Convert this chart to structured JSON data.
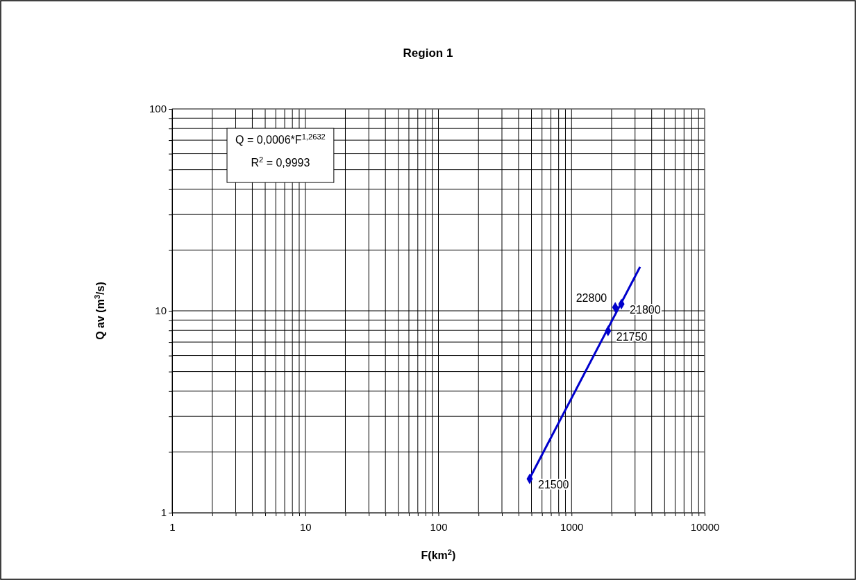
{
  "chart_data": {
    "type": "scatter",
    "title": "Region 1",
    "xlabel": "F(km$^{2}$)",
    "ylabel": "Q av (m$^{3}$/s)",
    "log": "xy",
    "grid": true,
    "marker": "diamond",
    "xlim": [
      1,
      10000
    ],
    "ylim": [
      1,
      100
    ],
    "xticks": [
      1,
      {
        "value": 2,
        "label": null
      },
      {
        "value": 3,
        "label": null
      },
      {
        "value": 4,
        "label": null
      },
      {
        "value": 5,
        "label": null
      },
      {
        "value": 6,
        "label": null
      },
      {
        "value": 7,
        "label": null
      },
      {
        "value": 8,
        "label": null
      },
      {
        "value": 9,
        "label": null
      },
      10,
      {
        "value": 20,
        "label": null
      },
      {
        "value": 30,
        "label": null
      },
      {
        "value": 40,
        "label": null
      },
      {
        "value": 50,
        "label": null
      },
      {
        "value": 60,
        "label": null
      },
      {
        "value": 70,
        "label": null
      },
      {
        "value": 80,
        "label": null
      },
      {
        "value": 90,
        "label": null
      },
      100,
      {
        "value": 200,
        "label": null
      },
      {
        "value": 300,
        "label": null
      },
      {
        "value": 400,
        "label": null
      },
      {
        "value": 500,
        "label": null
      },
      {
        "value": 600,
        "label": null
      },
      {
        "value": 700,
        "label": null
      },
      {
        "value": 800,
        "label": null
      },
      {
        "value": 900,
        "label": null
      },
      1000,
      {
        "value": 2000,
        "label": null
      },
      {
        "value": 3000,
        "label": null
      },
      {
        "value": 4000,
        "label": null
      },
      {
        "value": 5000,
        "label": null
      },
      {
        "value": 6000,
        "label": null
      },
      {
        "value": 7000,
        "label": null
      },
      {
        "value": 8000,
        "label": null
      },
      {
        "value": 9000,
        "label": null
      },
      10000
    ],
    "yticks": [
      1,
      {
        "value": 2,
        "label": null
      },
      {
        "value": 3,
        "label": null
      },
      {
        "value": 4,
        "label": null
      },
      {
        "value": 5,
        "label": null
      },
      {
        "value": 6,
        "label": null
      },
      {
        "value": 7,
        "label": null
      },
      {
        "value": 8,
        "label": null
      },
      {
        "value": 9,
        "label": null
      },
      10,
      {
        "value": 20,
        "label": null
      },
      {
        "value": 30,
        "label": null
      },
      {
        "value": 40,
        "label": null
      },
      {
        "value": 50,
        "label": null
      },
      {
        "value": 60,
        "label": null
      },
      {
        "value": 70,
        "label": null
      },
      {
        "value": 80,
        "label": null
      },
      {
        "value": 90,
        "label": null
      },
      100
    ],
    "series": [
      {
        "type": "line",
        "marker": "none",
        "color": "#0000cc",
        "x": [
          485,
          3270
        ],
        "values": [
          1.48,
          16.5
        ]
      },
      {
        "color": "#0000cc",
        "x": [
          485,
          1880,
          2370,
          2130
        ],
        "values": [
          1.47,
          7.95,
          10.8,
          10.4
        ]
      }
    ],
    "annotations": [
      "Q = 0,0006*F$^{1,2632}$",
      "R$^{2}$ = 0,9993",
      {
        "text": "21500",
        "x": 485,
        "y": 1.47
      },
      {
        "text": "21750",
        "x": 1880,
        "y": 7.95
      },
      {
        "text": "21800",
        "x": 2370,
        "y": 10.8
      },
      {
        "text": "22800",
        "x": 2130,
        "y": 10.4
      }
    ]
  }
}
